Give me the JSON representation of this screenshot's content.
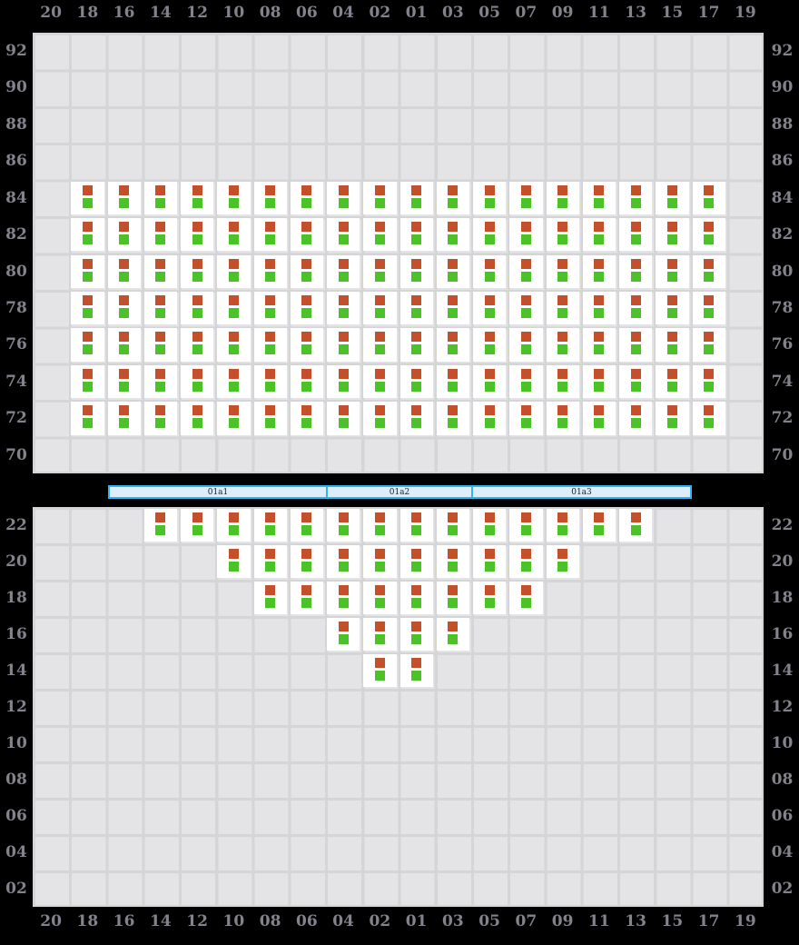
{
  "columns": [
    "20",
    "18",
    "16",
    "14",
    "12",
    "10",
    "08",
    "06",
    "04",
    "02",
    "01",
    "03",
    "05",
    "07",
    "09",
    "11",
    "13",
    "15",
    "17",
    "19"
  ],
  "upper_deck": {
    "row_labels": [
      "92",
      "90",
      "88",
      "86",
      "84",
      "82",
      "80",
      "78",
      "76",
      "74",
      "72",
      "70"
    ],
    "seat_rows": [
      "84",
      "82",
      "80",
      "78",
      "76",
      "74",
      "72"
    ],
    "seat_columns": [
      "18",
      "16",
      "14",
      "12",
      "10",
      "08",
      "06",
      "04",
      "02",
      "01",
      "03",
      "05",
      "07",
      "09",
      "11",
      "13",
      "15",
      "17"
    ]
  },
  "section_bar": {
    "sections": [
      {
        "label": "01a1",
        "weight": 241
      },
      {
        "label": "01a2",
        "weight": 160
      },
      {
        "label": "01a3",
        "weight": 242
      }
    ]
  },
  "lower_deck": {
    "row_labels": [
      "22",
      "20",
      "18",
      "16",
      "14",
      "12",
      "10",
      "08",
      "06",
      "04",
      "02"
    ],
    "seat_rows": [
      {
        "row": "22",
        "columns": [
          "14",
          "12",
          "10",
          "08",
          "06",
          "04",
          "02",
          "01",
          "03",
          "05",
          "07",
          "09",
          "11",
          "13"
        ]
      },
      {
        "row": "20",
        "columns": [
          "10",
          "08",
          "06",
          "04",
          "02",
          "01",
          "03",
          "05",
          "07",
          "09"
        ]
      },
      {
        "row": "18",
        "columns": [
          "08",
          "06",
          "04",
          "02",
          "01",
          "03",
          "05",
          "07"
        ]
      },
      {
        "row": "16",
        "columns": [
          "04",
          "02",
          "01",
          "03"
        ]
      },
      {
        "row": "14",
        "columns": [
          "02",
          "01"
        ]
      }
    ]
  },
  "colors": {
    "background": "#000000",
    "grid_cell": "#e4e4e6",
    "grid_line": "#d5d5d8",
    "seat_fill": "#ffffff",
    "seat_marker_top": "#c4502b",
    "seat_marker_bottom": "#4bc228",
    "axis_label": "#83838d",
    "bar_fill": "#dceefb",
    "bar_border": "#33b2f0",
    "bar_text": "#222222"
  }
}
